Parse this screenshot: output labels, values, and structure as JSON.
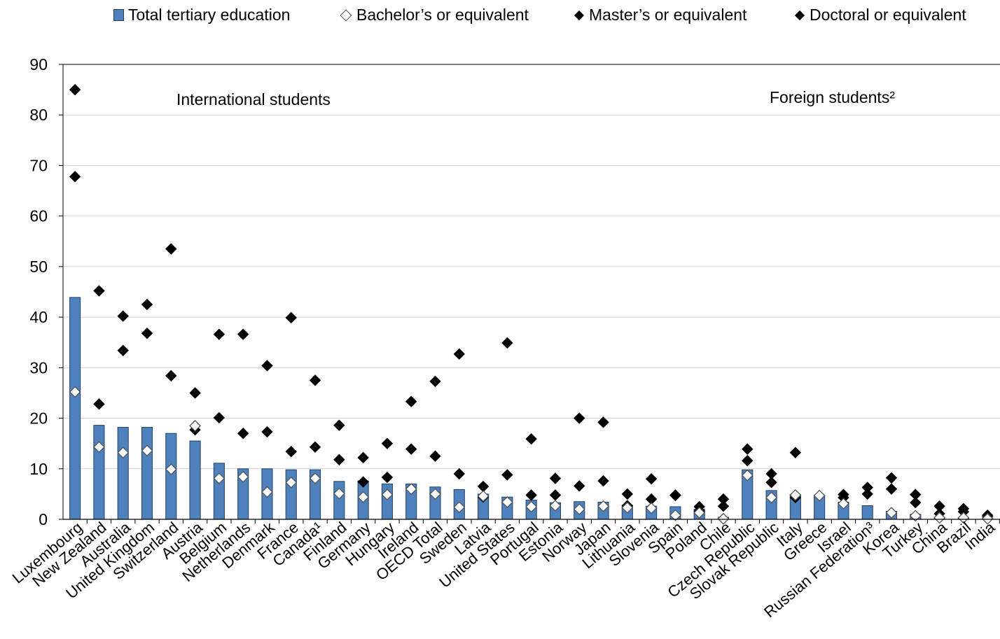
{
  "chart_data": {
    "type": "bar",
    "title": "",
    "xlabel": "",
    "ylabel": "",
    "ylim": [
      0,
      90
    ],
    "yticks": [
      "0",
      "10",
      "20",
      "30",
      "40",
      "50",
      "60",
      "70",
      "80",
      "90"
    ],
    "grid": true,
    "legend_position": "top",
    "annotations": {
      "left": "International students",
      "right": "Foreign students²"
    },
    "categories": [
      "Luxembourg",
      "New Zealand",
      "Australia",
      "United Kingdom",
      "Switzerland",
      "Austria",
      "Belgium",
      "Netherlands",
      "Denmark",
      "France",
      "Canada¹",
      "Finland",
      "Germany",
      "Hungary",
      "Ireland",
      "OECD Total",
      "Sweden",
      "Latvia",
      "United States",
      "Portugal",
      "Estonia",
      "Norway",
      "Japan",
      "Lithuania",
      "Slovenia",
      "Spain",
      "Poland",
      "Chile",
      "Czech Republic",
      "Slovak Republic",
      "Italy",
      "Greece",
      "Israel",
      "Russian Federation³",
      "Korea",
      "Turkey",
      "China",
      "Brazil",
      "India"
    ],
    "series": [
      {
        "name": "Total tertiary education",
        "kind": "bar",
        "color": "#4f81bd",
        "values": [
          43.9,
          18.6,
          18.2,
          18.2,
          17.0,
          15.5,
          11.1,
          10.0,
          10.0,
          9.8,
          9.8,
          7.5,
          7.6,
          7.0,
          7.0,
          6.4,
          5.9,
          5.0,
          4.4,
          3.8,
          3.3,
          3.5,
          3.4,
          2.8,
          2.6,
          2.5,
          2.0,
          0.4,
          9.8,
          5.7,
          4.9,
          4.8,
          3.4,
          2.7,
          1.6,
          1.0,
          0.4,
          0.3,
          0.0
        ]
      },
      {
        "name": "Bachelor’s or equivalent",
        "kind": "open-diamond",
        "values": [
          25.2,
          14.3,
          13.2,
          13.6,
          9.9,
          18.5,
          8.1,
          8.4,
          5.4,
          7.3,
          8.1,
          5.1,
          4.4,
          4.9,
          6.0,
          5.0,
          2.4,
          4.6,
          3.4,
          2.5,
          2.7,
          2.0,
          2.6,
          2.3,
          2.2,
          0.8,
          1.3,
          0.1,
          8.7,
          4.3,
          4.8,
          4.7,
          3.1,
          null,
          1.3,
          0.7,
          0.3,
          0.3,
          0.1
        ]
      },
      {
        "name": "Master’s or equivalent",
        "kind": "filled-diamond",
        "values": [
          67.8,
          22.8,
          33.4,
          36.8,
          28.4,
          17.7,
          20.1,
          17.0,
          17.3,
          13.4,
          14.3,
          11.8,
          7.4,
          8.3,
          13.9,
          12.5,
          9.0,
          4.4,
          8.8,
          4.8,
          4.8,
          6.6,
          7.6,
          2.7,
          4.0,
          4.7,
          1.6,
          2.6,
          11.6,
          7.3,
          4.3,
          null,
          4.3,
          5.0,
          6.0,
          3.3,
          1.1,
          1.5,
          0.5
        ]
      },
      {
        "name": "Doctoral or equivalent",
        "kind": "filled-diamond",
        "values": [
          85.0,
          45.2,
          40.2,
          42.5,
          53.5,
          25.0,
          36.6,
          36.6,
          30.4,
          39.9,
          27.5,
          18.6,
          12.2,
          15.0,
          23.3,
          27.3,
          32.7,
          6.5,
          34.9,
          15.9,
          8.1,
          20.0,
          19.2,
          5.0,
          8.0,
          4.8,
          2.5,
          4.0,
          13.9,
          9.0,
          13.2,
          null,
          4.9,
          6.3,
          8.2,
          4.9,
          2.6,
          2.1,
          0.8
        ]
      }
    ]
  }
}
